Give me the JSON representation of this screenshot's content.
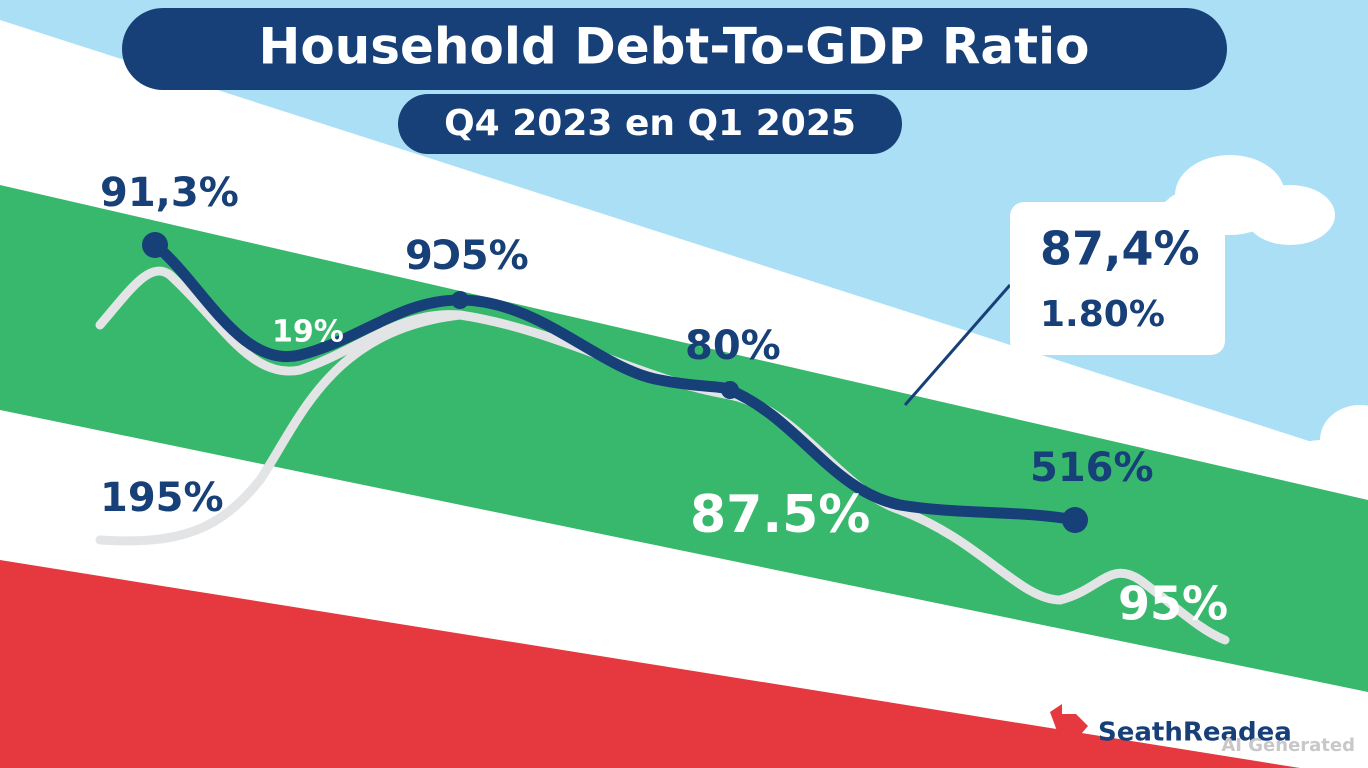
{
  "header": {
    "title": "Household Debt-To-GDP Ratio",
    "subtitle": "Q4 2023 en Q1 2025"
  },
  "labels": [
    "91,3%",
    "9Ͻ5%",
    "19%",
    "80%",
    "195%",
    "87.5%",
    "516%",
    "95%"
  ],
  "callout": {
    "value": "87,4%",
    "sub": "1.80%"
  },
  "logo": "SeathReadea",
  "watermark": "AI Generated"
}
